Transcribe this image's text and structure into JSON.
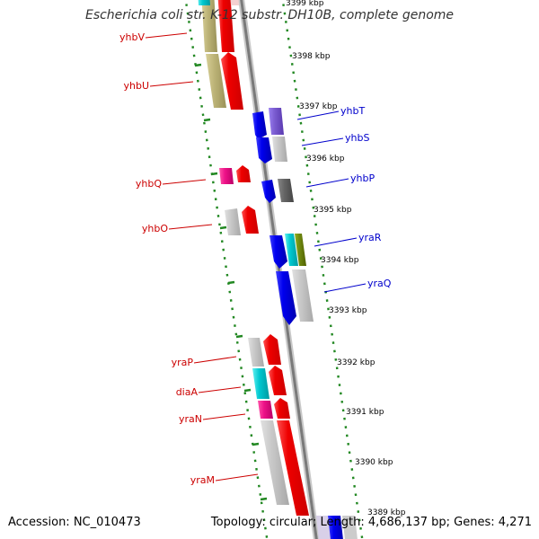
{
  "title": "Escherichia coli str. K-12 substr. DH10B, complete genome",
  "footer": {
    "accession": "Accession: NC_010473",
    "topology": "Topology: circular; Length: 4,686,137 bp; Genes: 4,271"
  },
  "colors": {
    "forward_labels": "#cc0000",
    "reverse_labels": "#0000cc",
    "ruler": "#228822",
    "backbone": "#999999"
  },
  "ruler_labels": [
    "3399 kbp",
    "3398 kbp",
    "3397 kbp",
    "3396 kbp",
    "3395 kbp",
    "3394 kbp",
    "3393 kbp",
    "3392 kbp",
    "3391 kbp",
    "3390 kbp",
    "3389 kbp"
  ],
  "genes": [
    {
      "name": "yhbV",
      "strand": "forward",
      "color": "#b8b070"
    },
    {
      "name": "yhbU",
      "strand": "forward",
      "color": "#b8b070"
    },
    {
      "name": "yhbT",
      "strand": "reverse",
      "color": "#7a5bd0"
    },
    {
      "name": "yhbS",
      "strand": "reverse",
      "color": "#0000ee"
    },
    {
      "name": "yhbQ",
      "strand": "forward",
      "color": "#ee1188"
    },
    {
      "name": "yhbP",
      "strand": "reverse",
      "color": "#0000ee"
    },
    {
      "name": "yhbO",
      "strand": "forward",
      "color": "#ee0000"
    },
    {
      "name": "yraR",
      "strand": "reverse",
      "color": "#0000ee"
    },
    {
      "name": "yraQ",
      "strand": "reverse",
      "color": "#0000ee"
    },
    {
      "name": "yraP",
      "strand": "forward",
      "color": "#ee0000"
    },
    {
      "name": "diaA",
      "strand": "forward",
      "color": "#00c8d0"
    },
    {
      "name": "yraN",
      "strand": "forward",
      "color": "#ee1188"
    },
    {
      "name": "yraM",
      "strand": "forward",
      "color": "#ee0000"
    }
  ]
}
